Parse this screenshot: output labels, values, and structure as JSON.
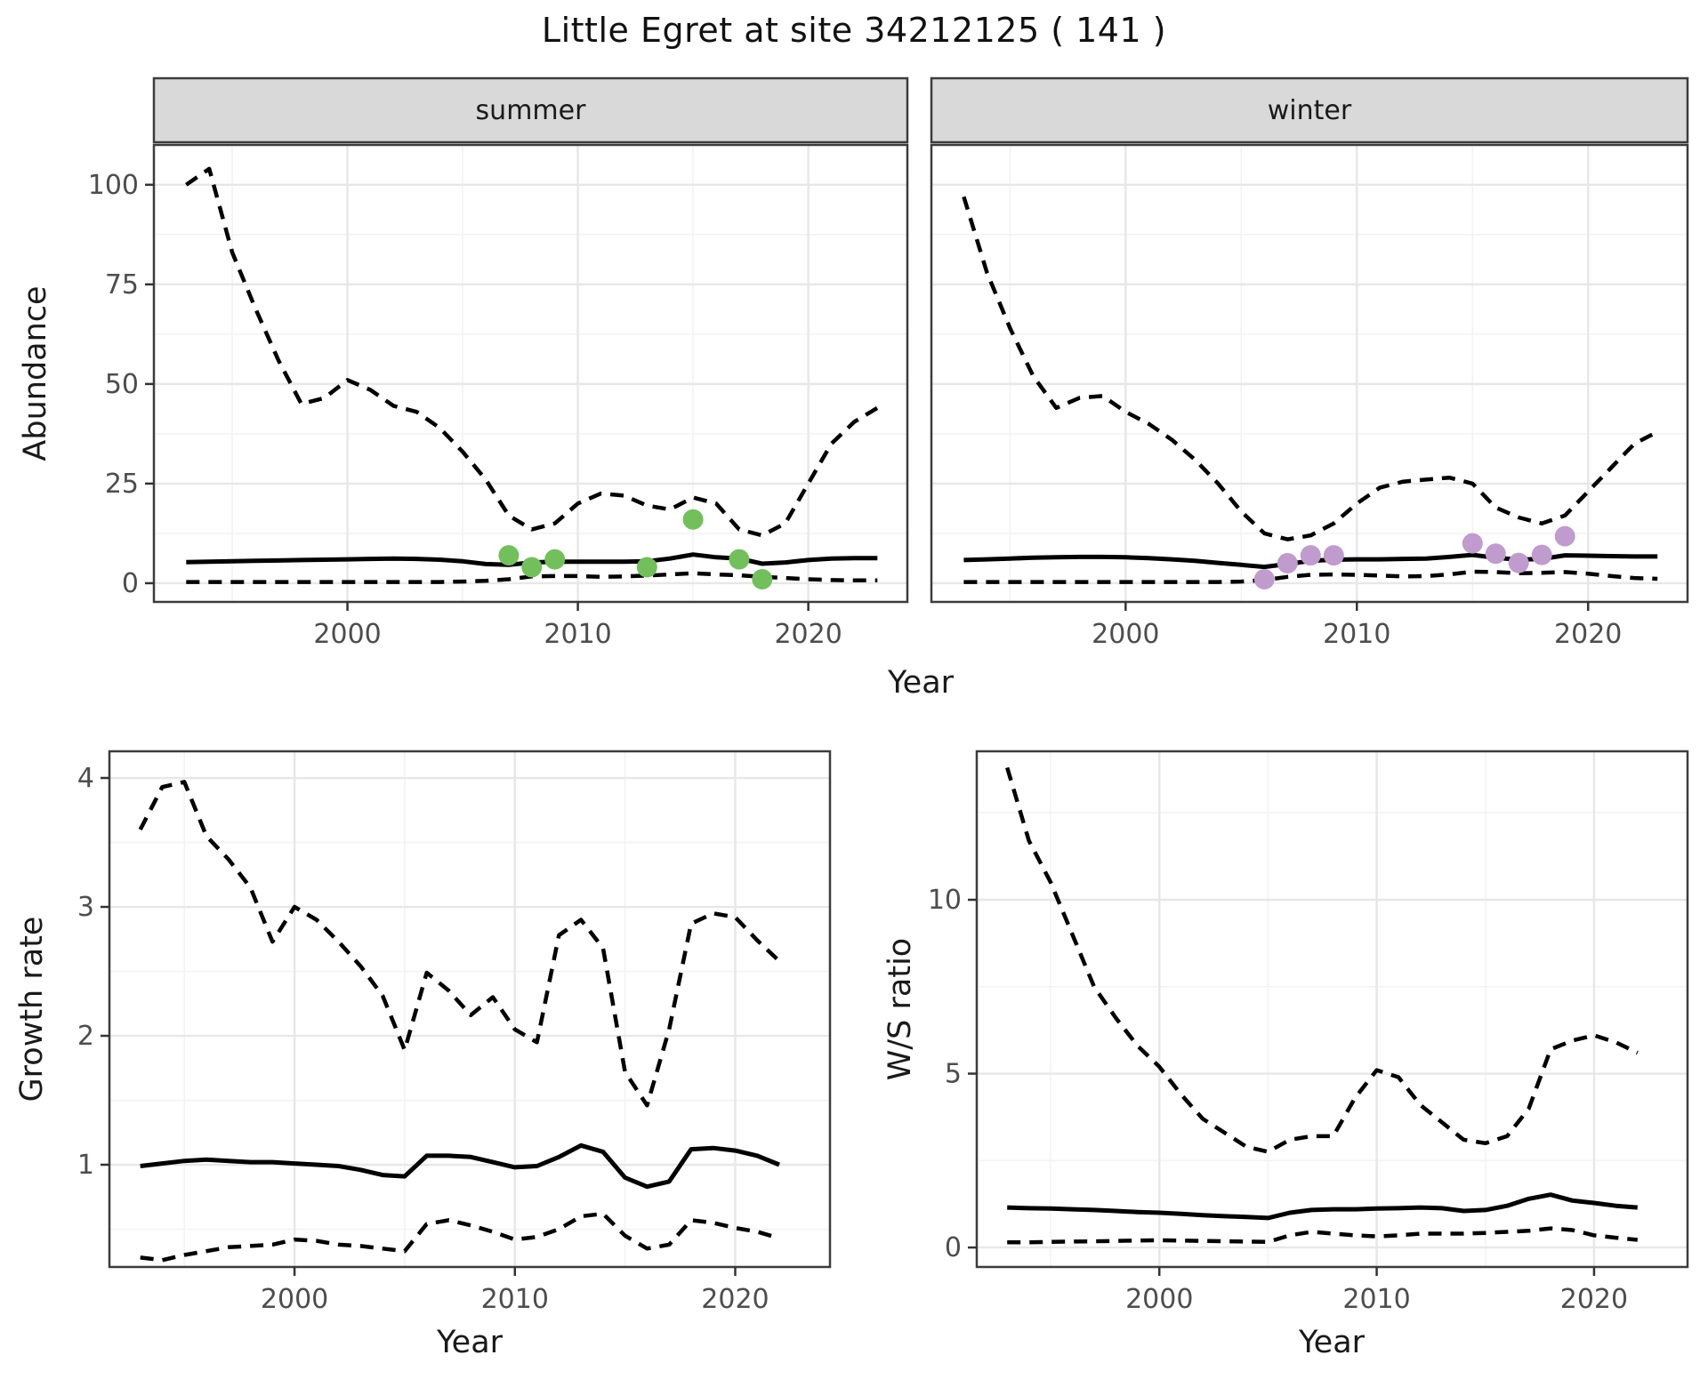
{
  "title": "Little Egret at site 34212125 ( 141 )",
  "facets": {
    "summer": "summer",
    "winter": "winter"
  },
  "axis_titles": {
    "abundance": "Abundance",
    "growth_rate": "Growth rate",
    "ws_ratio": "W/S ratio",
    "year": "Year"
  },
  "colors": {
    "summer_points": "#72c05c",
    "winter_points": "#c09bce",
    "line": "#000000",
    "grid_major": "#e7e7e7",
    "grid_minor": "#f3f3f3",
    "strip_bg": "#d9d9d9",
    "panel_border": "#3c3c3c",
    "tick_text": "#4d4d4d",
    "tick_mark": "#333333"
  },
  "chart_data": [
    {
      "id": "abundance_summer",
      "type": "line",
      "facet": "summer",
      "ylabel": "Abundance",
      "xlabel": "Year",
      "xlim": [
        1991.6,
        2024.3
      ],
      "ylim": [
        -4.7,
        110
      ],
      "xticks_major": [
        2000,
        2010,
        2020
      ],
      "xticks_minor": [
        1995,
        2005,
        2015
      ],
      "yticks_major": [
        0,
        25,
        50,
        75,
        100
      ],
      "yticks_minor": [
        12.5,
        37.5,
        62.5,
        87.5
      ],
      "show_ytick_labels": true,
      "x": [
        1993,
        1994,
        1995,
        1996,
        1997,
        1998,
        1999,
        2000,
        2001,
        2002,
        2003,
        2004,
        2005,
        2006,
        2007,
        2008,
        2009,
        2010,
        2011,
        2012,
        2013,
        2014,
        2015,
        2016,
        2017,
        2018,
        2019,
        2020,
        2021,
        2022,
        2023
      ],
      "series": [
        {
          "name": "upper_95ci",
          "style": "dashed",
          "values": [
            100,
            104,
            83,
            69,
            56,
            45,
            46.5,
            51,
            48.5,
            44.5,
            43,
            39,
            33,
            26,
            17,
            13.5,
            15,
            20,
            22.5,
            22,
            19.5,
            18.5,
            21.5,
            20,
            13.5,
            12,
            15,
            25,
            35,
            40.5,
            44
          ]
        },
        {
          "name": "median",
          "style": "solid",
          "values": [
            5.3,
            5.4,
            5.5,
            5.6,
            5.7,
            5.8,
            5.9,
            6,
            6.1,
            6.2,
            6.1,
            5.9,
            5.5,
            4.8,
            4.6,
            5.2,
            5.4,
            5.4,
            5.4,
            5.4,
            5.5,
            6.2,
            7.2,
            6.5,
            6.2,
            4.9,
            5.2,
            5.8,
            6.2,
            6.3,
            6.3
          ]
        },
        {
          "name": "lower_95ci",
          "style": "dashed",
          "values": [
            0.3,
            0.3,
            0.3,
            0.3,
            0.3,
            0.3,
            0.3,
            0.3,
            0.3,
            0.3,
            0.3,
            0.3,
            0.4,
            0.6,
            1,
            1.7,
            1.8,
            1.8,
            1.6,
            1.7,
            1.9,
            2.2,
            2.5,
            2.2,
            2,
            1.6,
            1.3,
            1,
            0.8,
            0.7,
            0.7
          ]
        }
      ],
      "points": {
        "name": "observed-summer-counts",
        "color_key": "summer_points",
        "xy": [
          [
            2007,
            7
          ],
          [
            2008,
            4
          ],
          [
            2009,
            6
          ],
          [
            2013,
            4
          ],
          [
            2015,
            16
          ],
          [
            2017,
            6
          ],
          [
            2018,
            1
          ]
        ]
      }
    },
    {
      "id": "abundance_winter",
      "type": "line",
      "facet": "winter",
      "ylabel": "Abundance",
      "xlabel": "Year",
      "xlim": [
        1991.6,
        2024.3
      ],
      "ylim": [
        -4.7,
        110
      ],
      "xticks_major": [
        2000,
        2010,
        2020
      ],
      "xticks_minor": [
        1995,
        2005,
        2015
      ],
      "yticks_major": [
        0,
        25,
        50,
        75,
        100
      ],
      "yticks_minor": [
        12.5,
        37.5,
        62.5,
        87.5
      ],
      "show_ytick_labels": false,
      "x": [
        1993,
        1994,
        1995,
        1996,
        1997,
        1998,
        1999,
        2000,
        2001,
        2002,
        2003,
        2004,
        2005,
        2006,
        2007,
        2008,
        2009,
        2010,
        2011,
        2012,
        2013,
        2014,
        2015,
        2016,
        2017,
        2018,
        2019,
        2020,
        2021,
        2022,
        2023
      ],
      "series": [
        {
          "name": "upper_95ci",
          "style": "dashed",
          "values": [
            97,
            78,
            64,
            52,
            44,
            46.5,
            47,
            43,
            40,
            36,
            31,
            25,
            18,
            12.5,
            11,
            12,
            15,
            20,
            24,
            25.5,
            26,
            26.5,
            25,
            19,
            16.5,
            15,
            17,
            23,
            29,
            35,
            38
          ]
        },
        {
          "name": "median",
          "style": "solid",
          "values": [
            5.8,
            6,
            6.2,
            6.4,
            6.5,
            6.6,
            6.6,
            6.5,
            6.3,
            6,
            5.6,
            5.1,
            4.6,
            4.1,
            4.8,
            5.6,
            5.9,
            6,
            6,
            6.1,
            6.2,
            6.6,
            7.1,
            6.4,
            5.9,
            6.1,
            7,
            6.9,
            6.8,
            6.7,
            6.7
          ]
        },
        {
          "name": "lower_95ci",
          "style": "dashed",
          "values": [
            0.3,
            0.3,
            0.3,
            0.3,
            0.3,
            0.3,
            0.3,
            0.3,
            0.3,
            0.3,
            0.3,
            0.3,
            0.4,
            0.8,
            1.6,
            2.1,
            2.2,
            2.1,
            1.9,
            1.7,
            1.8,
            2.2,
            2.9,
            2.8,
            2.5,
            2.6,
            2.8,
            2.4,
            1.8,
            1.3,
            1.1
          ]
        }
      ],
      "points": {
        "name": "observed-winter-counts",
        "color_key": "winter_points",
        "xy": [
          [
            2006,
            1
          ],
          [
            2007,
            5
          ],
          [
            2008,
            7
          ],
          [
            2009,
            7
          ],
          [
            2015,
            10
          ],
          [
            2016,
            7.4
          ],
          [
            2017,
            5.1
          ],
          [
            2018,
            7.1
          ],
          [
            2019,
            11.8
          ]
        ]
      }
    },
    {
      "id": "growth_rate",
      "type": "line",
      "facet": null,
      "ylabel": "Growth rate",
      "xlabel": "Year",
      "xlim": [
        1991.6,
        2024.3
      ],
      "ylim": [
        0.207,
        4.207
      ],
      "xticks_major": [
        2000,
        2010,
        2020
      ],
      "xticks_minor": [
        1995,
        2005,
        2015
      ],
      "yticks_major": [
        1,
        2,
        3,
        4
      ],
      "yticks_minor": [
        0.5,
        1.5,
        2.5,
        3.5
      ],
      "show_ytick_labels": true,
      "x": [
        1993,
        1994,
        1995,
        1996,
        1997,
        1998,
        1999,
        2000,
        2001,
        2002,
        2003,
        2004,
        2005,
        2006,
        2007,
        2008,
        2009,
        2010,
        2011,
        2012,
        2013,
        2014,
        2015,
        2016,
        2017,
        2018,
        2019,
        2020,
        2021,
        2022
      ],
      "series": [
        {
          "name": "upper_95ci",
          "style": "dashed",
          "values": [
            3.6,
            3.93,
            3.97,
            3.55,
            3.37,
            3.15,
            2.73,
            3,
            2.9,
            2.73,
            2.54,
            2.31,
            1.89,
            2.49,
            2.35,
            2.16,
            2.3,
            2.05,
            1.95,
            2.78,
            2.9,
            2.68,
            1.72,
            1.46,
            2.05,
            2.87,
            2.95,
            2.92,
            2.74,
            2.58
          ]
        },
        {
          "name": "median",
          "style": "solid",
          "values": [
            0.99,
            1.01,
            1.03,
            1.04,
            1.03,
            1.02,
            1.02,
            1.01,
            1,
            0.99,
            0.96,
            0.92,
            0.91,
            1.07,
            1.07,
            1.06,
            1.02,
            0.98,
            0.99,
            1.06,
            1.15,
            1.1,
            0.9,
            0.83,
            0.87,
            1.12,
            1.13,
            1.11,
            1.07,
            1
          ]
        },
        {
          "name": "lower_95ci",
          "style": "dashed",
          "values": [
            0.28,
            0.26,
            0.3,
            0.33,
            0.36,
            0.37,
            0.38,
            0.42,
            0.41,
            0.38,
            0.37,
            0.35,
            0.33,
            0.54,
            0.57,
            0.53,
            0.48,
            0.42,
            0.44,
            0.5,
            0.6,
            0.62,
            0.45,
            0.35,
            0.38,
            0.57,
            0.55,
            0.51,
            0.48,
            0.43
          ]
        }
      ],
      "points": null
    },
    {
      "id": "ws_ratio",
      "type": "line",
      "facet": null,
      "ylabel": "W/S ratio",
      "xlabel": "Year",
      "xlim": [
        1991.6,
        2024.3
      ],
      "ylim": [
        -0.56,
        14.27
      ],
      "xticks_major": [
        2000,
        2010,
        2020
      ],
      "xticks_minor": [
        1995,
        2005,
        2015
      ],
      "yticks_major": [
        0,
        5,
        10
      ],
      "yticks_minor": [
        2.5,
        7.5,
        12.5
      ],
      "show_ytick_labels": true,
      "x": [
        1993,
        1994,
        1995,
        1996,
        1997,
        1998,
        1999,
        2000,
        2001,
        2002,
        2003,
        2004,
        2005,
        2006,
        2007,
        2008,
        2009,
        2010,
        2011,
        2012,
        2013,
        2014,
        2015,
        2016,
        2017,
        2018,
        2019,
        2020,
        2021,
        2022
      ],
      "series": [
        {
          "name": "upper_95ci",
          "style": "dashed",
          "values": [
            13.8,
            11.7,
            10.5,
            9,
            7.5,
            6.6,
            5.8,
            5.2,
            4.4,
            3.7,
            3.3,
            2.9,
            2.75,
            3.1,
            3.2,
            3.2,
            4.3,
            5.1,
            4.9,
            4.1,
            3.6,
            3.1,
            3,
            3.2,
            4,
            5.7,
            5.95,
            6.1,
            5.9,
            5.6
          ]
        },
        {
          "name": "median",
          "style": "solid",
          "values": [
            1.15,
            1.13,
            1.12,
            1.1,
            1.08,
            1.05,
            1.02,
            1,
            0.97,
            0.93,
            0.9,
            0.88,
            0.85,
            1,
            1.08,
            1.1,
            1.1,
            1.12,
            1.13,
            1.15,
            1.13,
            1.05,
            1.08,
            1.2,
            1.4,
            1.52,
            1.35,
            1.28,
            1.2,
            1.15
          ]
        },
        {
          "name": "lower_95ci",
          "style": "dashed",
          "values": [
            0.15,
            0.15,
            0.16,
            0.17,
            0.18,
            0.19,
            0.2,
            0.21,
            0.2,
            0.19,
            0.18,
            0.17,
            0.16,
            0.35,
            0.45,
            0.4,
            0.35,
            0.32,
            0.35,
            0.4,
            0.4,
            0.4,
            0.42,
            0.45,
            0.48,
            0.55,
            0.5,
            0.35,
            0.28,
            0.22
          ]
        }
      ],
      "points": null
    }
  ]
}
